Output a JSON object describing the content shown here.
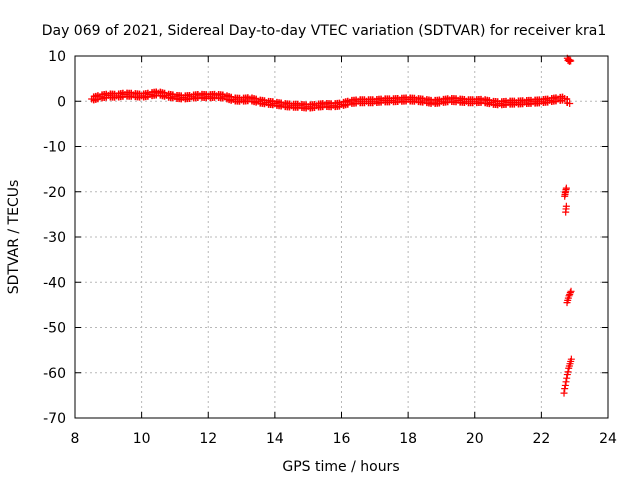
{
  "chart_data": {
    "type": "scatter",
    "title": "Day 069 of 2021, Sidereal Day-to-day VTEC variation (SDTVAR) for receiver kra1",
    "xlabel": "GPS time / hours",
    "ylabel": "SDTVAR / TECUs",
    "xlim": [
      8,
      24
    ],
    "ylim": [
      -70,
      10
    ],
    "xticks": [
      "8",
      "10",
      "12",
      "14",
      "16",
      "18",
      "20",
      "22",
      "24"
    ],
    "yticks": [
      "10",
      "0",
      "-10",
      "-20",
      "-30",
      "-40",
      "-50",
      "-60",
      "-70"
    ],
    "grid": true,
    "legend": "none",
    "marker": "plus",
    "color": "#ff0000",
    "series": [
      {
        "name": "",
        "x": [
          8.5,
          8.75,
          9.0,
          9.25,
          9.5,
          9.75,
          10.0,
          10.25,
          10.5,
          10.75,
          11.0,
          11.25,
          11.5,
          11.75,
          12.0,
          12.25,
          12.5,
          12.75,
          13.0,
          13.25,
          13.5,
          13.75,
          14.0,
          14.25,
          14.5,
          14.75,
          15.0,
          15.25,
          15.5,
          15.75,
          16.0,
          16.25,
          16.5,
          16.75,
          17.0,
          17.25,
          17.5,
          17.75,
          18.0,
          18.25,
          18.5,
          18.75,
          19.0,
          19.25,
          19.5,
          19.75,
          20.0,
          20.25,
          20.5,
          20.75,
          21.0,
          21.25,
          21.5,
          21.75,
          22.0,
          22.25,
          22.5,
          22.7,
          22.85
        ],
        "y": [
          0.5,
          1.0,
          1.3,
          1.2,
          1.5,
          1.4,
          1.2,
          1.5,
          1.8,
          1.3,
          1.0,
          0.8,
          1.0,
          1.2,
          1.1,
          1.2,
          1.0,
          0.4,
          0.3,
          0.5,
          0.0,
          -0.3,
          -0.5,
          -0.8,
          -1.0,
          -1.0,
          -1.2,
          -1.0,
          -0.8,
          -0.9,
          -0.7,
          -0.2,
          0.0,
          0.0,
          0.0,
          0.2,
          0.2,
          0.3,
          0.4,
          0.3,
          0.1,
          -0.2,
          0.0,
          0.3,
          0.2,
          0.0,
          0.0,
          0.1,
          -0.3,
          -0.5,
          -0.3,
          -0.3,
          -0.2,
          -0.1,
          0.0,
          0.2,
          0.5,
          0.6,
          -0.5
        ]
      },
      {
        "name": "",
        "x": [
          22.78,
          22.8,
          22.82,
          22.84,
          22.86,
          22.88,
          22.7,
          22.71,
          22.72,
          22.73,
          22.74,
          22.75,
          22.77,
          22.79,
          22.81,
          22.83,
          22.85,
          22.87,
          22.89,
          22.68,
          22.7,
          22.72,
          22.74,
          22.76,
          22.78,
          22.8,
          22.82,
          22.84,
          22.86,
          22.88,
          22.9,
          22.73,
          22.74,
          22.75
        ],
        "y": [
          9.5,
          9.0,
          9.2,
          8.8,
          9.1,
          8.9,
          -21.0,
          -20.6,
          -20.2,
          -19.9,
          -19.5,
          -19.2,
          -44.5,
          -44.0,
          -43.5,
          -43.0,
          -42.7,
          -42.3,
          -42.0,
          -64.5,
          -63.5,
          -62.8,
          -62.0,
          -61.2,
          -60.4,
          -59.8,
          -59.0,
          -58.5,
          -58.0,
          -57.5,
          -57.0,
          -24.5,
          -23.8,
          -23.2
        ]
      }
    ]
  }
}
